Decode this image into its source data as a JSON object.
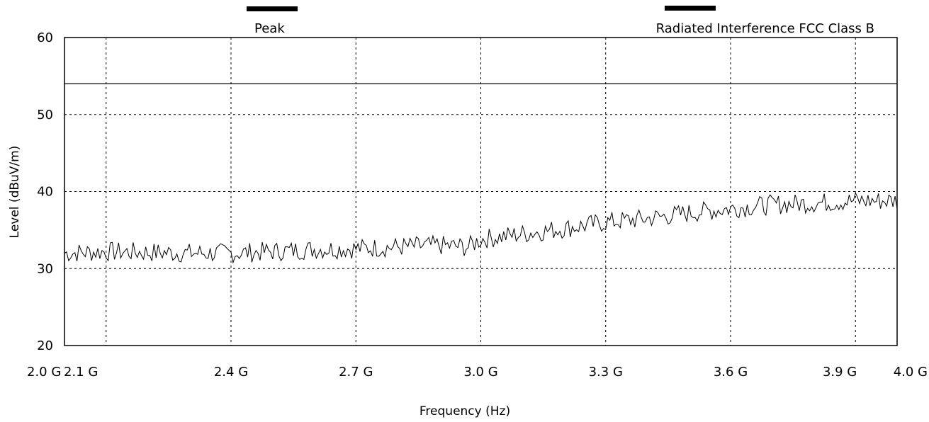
{
  "chart_data": {
    "type": "line",
    "title": "",
    "xlabel": "Frequency (Hz)",
    "ylabel": "Level (dBuV/m)",
    "xlim": [
      2.0,
      4.0
    ],
    "ylim": [
      20,
      60
    ],
    "x_unit": "GHz",
    "grid": true,
    "grid_style": "dashed",
    "y_ticks": [
      20,
      30,
      40,
      50,
      60
    ],
    "y_tick_labels": [
      "20",
      "30",
      "40",
      "50",
      "60"
    ],
    "x_ticks": [
      2.0,
      2.1,
      2.4,
      2.7,
      3.0,
      3.3,
      3.6,
      3.9,
      4.0
    ],
    "x_tick_labels": [
      "2.0 G",
      "2.1 G",
      "2.4 G",
      "2.7 G",
      "3.0 G",
      "3.3 G",
      "3.6 G",
      "3.9 G",
      "4.0 G"
    ],
    "legend_placement": "top",
    "series": [
      {
        "name": "Peak",
        "color": "#000000",
        "x": [
          2.0,
          2.1,
          2.2,
          2.3,
          2.4,
          2.5,
          2.6,
          2.7,
          2.8,
          2.9,
          2.97,
          3.0,
          3.1,
          3.2,
          3.3,
          3.4,
          3.5,
          3.6,
          3.7,
          3.8,
          3.9,
          4.0
        ],
        "values": [
          32.0,
          32.2,
          32.1,
          32.0,
          32.0,
          32.2,
          32.5,
          32.6,
          32.8,
          33.0,
          32.8,
          33.8,
          34.5,
          35.2,
          36.0,
          36.5,
          37.2,
          37.8,
          38.3,
          38.5,
          38.8,
          38.8
        ]
      },
      {
        "name": "Radiated Interference FCC Class B",
        "color": "#000000",
        "x": [
          2.0,
          4.0
        ],
        "values": [
          54.0,
          54.0
        ]
      }
    ]
  }
}
